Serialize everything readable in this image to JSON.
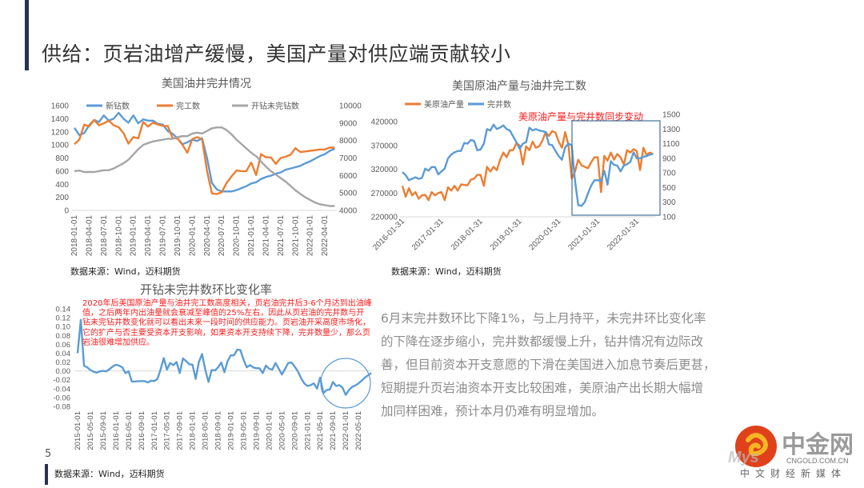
{
  "page": {
    "title": "供给：页岩油增产缓慢，美国产量对供应端贡献较小",
    "page_number": "5",
    "body_text": [
      "6月末完井数环比下降1%，与上月持平，未完井环比变化率",
      "的下降在逐步缩小，完井数都缓慢上升，钻井情况有边际改",
      "善，但目前资本开支意愿的下滑在美国进入加息节奏后更甚，",
      "短期提升页岩油资本开支比较困难，美原油产出长期大幅增",
      "加同样困难，预计本月仍难有明显增加。"
    ],
    "sources": [
      "数据来源：Wind，迈科期货",
      "数据来源：Wind，迈科期货",
      "数据来源：Wind，迈科期货"
    ],
    "logo": {
      "text": "中金网",
      "domain": "CNGOLD.COM.CN",
      "tagline": "中文财经新媒体",
      "watermark": "Mysteel 迈科期货"
    },
    "colors": {
      "blue": "#5b9bd5",
      "orange": "#ed7d31",
      "gray": "#a5a5a5",
      "red": "#ff1a1a",
      "box": "#41719c"
    }
  },
  "chart_data": [
    {
      "type": "line",
      "title": "美国油井完井情况",
      "x_start": "2018-01",
      "x_step": "month",
      "x_tick_labels": [
        "2018-01-01",
        "2018-04-01",
        "2018-07-01",
        "2018-10-01",
        "2019-01-01",
        "2019-04-01",
        "2019-07-01",
        "2019-10-01",
        "2020-01-01",
        "2020-04-01",
        "2020-07-01",
        "2020-10-01",
        "2021-01-01",
        "2021-04-01",
        "2021-07-01",
        "2021-10-01",
        "2022-01-01",
        "2022-04-01"
      ],
      "y_left": {
        "min": 0,
        "max": 1600,
        "step": 200
      },
      "y_right": {
        "min": 4000,
        "max": 10000,
        "step": 1000
      },
      "legend_position": "top",
      "series": [
        {
          "name": "新钻数",
          "axis": "left",
          "color": "#5b9bd5",
          "values": [
            1260,
            1150,
            1180,
            1300,
            1380,
            1350,
            1450,
            1370,
            1400,
            1490,
            1400,
            1340,
            1450,
            1330,
            1390,
            1370,
            1370,
            1320,
            1310,
            1210,
            1170,
            1100,
            1010,
            1040,
            1080,
            1060,
            1100,
            800,
            420,
            320,
            290,
            290,
            290,
            310,
            340,
            370,
            410,
            430,
            480,
            510,
            530,
            560,
            580,
            620,
            640,
            660,
            680,
            720,
            750,
            790,
            830,
            860,
            910,
            940
          ]
        },
        {
          "name": "完工数",
          "axis": "left",
          "color": "#ed7d31",
          "values": [
            1010,
            1080,
            1310,
            1280,
            1380,
            1300,
            1330,
            1370,
            1300,
            1270,
            1180,
            1020,
            1120,
            1100,
            1350,
            1280,
            1340,
            1310,
            1290,
            1290,
            1100,
            1100,
            1000,
            880,
            1090,
            1120,
            1090,
            600,
            260,
            250,
            280,
            420,
            520,
            610,
            600,
            600,
            730,
            540,
            860,
            810,
            810,
            710,
            800,
            820,
            850,
            950,
            890,
            900,
            910,
            920,
            930,
            930,
            960,
            960
          ]
        },
        {
          "name": "开钻未完钻数",
          "axis": "right",
          "color": "#a5a5a5",
          "values": [
            6250,
            6280,
            6200,
            6200,
            6200,
            6250,
            6300,
            6300,
            6400,
            6550,
            6700,
            6900,
            7200,
            7500,
            7750,
            7850,
            7950,
            8000,
            8050,
            8100,
            8100,
            8200,
            8250,
            8250,
            8400,
            8450,
            8400,
            8550,
            8700,
            8750,
            8750,
            8600,
            8350,
            8050,
            7800,
            7550,
            7300,
            7100,
            6800,
            6500,
            6250,
            6050,
            5850,
            5650,
            5400,
            5150,
            4950,
            4750,
            4600,
            4450,
            4350,
            4300,
            4250,
            4250
          ]
        }
      ]
    },
    {
      "type": "line",
      "title": "美国原油产量与油井完工数",
      "annotation": "美原油产量与完井数同步变动",
      "x_start": "2016-01",
      "x_step": "month",
      "x_tick_labels": [
        "2016-01-31",
        "2017-01-31",
        "2018-01-31",
        "2019-01-31",
        "2020-01-31",
        "2021-01-31",
        "2022-01-31"
      ],
      "y_left": {
        "min": 220000,
        "max": 420000,
        "step": 50000
      },
      "y_right": {
        "min": 100,
        "max": 1500,
        "step": 200
      },
      "legend_position": "top-left",
      "series": [
        {
          "name": "美原油产量",
          "axis": "left",
          "color": "#ed7d31",
          "values": [
            285000,
            262000,
            280000,
            265000,
            272000,
            258000,
            265000,
            266000,
            255000,
            272000,
            265000,
            270000,
            272000,
            255000,
            282000,
            275000,
            285000,
            275000,
            288000,
            287000,
            286000,
            298000,
            300000,
            308000,
            308000,
            285000,
            325000,
            315000,
            325000,
            318000,
            340000,
            355000,
            345000,
            360000,
            360000,
            375000,
            370000,
            330000,
            368000,
            360000,
            378000,
            365000,
            368000,
            380000,
            398000,
            390000,
            400000,
            397000,
            378000,
            365000,
            398000,
            370000,
            300000,
            315000,
            340000,
            328000,
            325000,
            322000,
            335000,
            345000,
            345000,
            272000,
            348000,
            338000,
            355000,
            340000,
            352000,
            345000,
            330000,
            360000,
            355000,
            362000,
            358000,
            318000,
            365000,
            350000,
            355000,
            352000
          ]
        },
        {
          "name": "完井数",
          "axis": "right",
          "color": "#5b9bd5",
          "values": [
            710,
            670,
            600,
            620,
            640,
            620,
            630,
            760,
            730,
            780,
            780,
            680,
            720,
            760,
            900,
            950,
            980,
            1000,
            1000,
            1110,
            1100,
            1150,
            1140,
            1010,
            1020,
            1100,
            1300,
            1280,
            1360,
            1300,
            1320,
            1350,
            1300,
            1280,
            1200,
            1120,
            1030,
            1100,
            1120,
            1320,
            1280,
            1300,
            1280,
            1270,
            1260,
            1090,
            1080,
            1000,
            930,
            880,
            1050,
            1100,
            1080,
            600,
            260,
            250,
            300,
            420,
            530,
            600,
            600,
            590,
            730,
            540,
            860,
            810,
            800,
            720,
            800,
            820,
            850,
            980,
            900,
            900,
            920,
            930,
            950,
            960
          ]
        }
      ]
    },
    {
      "type": "line",
      "title": "开钻未完井数环比变化率",
      "annotation": "2020年后美国原油产量与油井完工数高度相关，页岩油完井后3-6个月达到出油峰值，之后两年内出油量就会衰减至峰值的25%左右，因此从页岩油的完井数与开钻未完钻井数变化就可以看出未来一段时间的供应能力。页岩油开采高度市场化，它的扩产与否主要受资本开支影响，如果资本开支持续下降，完井数量少，那么页岩油很难增加供应。",
      "x_start": "2015-01",
      "x_step": "month",
      "x_tick_labels": [
        "2015-01-01",
        "2015-05-01",
        "2015-09-01",
        "2016-01-01",
        "2016-05-01",
        "2016-09-01",
        "2017-01-01",
        "2017-05-01",
        "2017-09-01",
        "2018-01-01",
        "2018-05-01",
        "2018-09-01",
        "2019-01-01",
        "2019-05-01",
        "2019-09-01",
        "2020-01-01",
        "2020-05-01",
        "2020-09-01",
        "2021-01-01",
        "2021-05-01",
        "2021-09-01",
        "2022-01-01",
        "2022-05-01"
      ],
      "y_left": {
        "min": -0.08,
        "max": 0.14,
        "step": 0.02
      },
      "series": [
        {
          "name": "开钻未完井数环比变化率",
          "axis": "left",
          "color": "#5b9bd5",
          "values": [
            0.04,
            0.115,
            0.012,
            0.008,
            0.002,
            -0.002,
            -0.004,
            -0.001,
            0.0,
            -0.001,
            0.004,
            0.01,
            0.014,
            0.012,
            0.008,
            -0.005,
            -0.001,
            -0.024,
            -0.024,
            -0.023,
            -0.023,
            -0.023,
            -0.026,
            -0.022,
            -0.023,
            -0.018,
            0.003,
            0.029,
            0.003,
            0.018,
            0.013,
            0.02,
            -0.005,
            0.028,
            0.022,
            0.015,
            0.014,
            -0.018,
            0.02,
            0.038,
            0.003,
            -0.025,
            0.002,
            0.001,
            0.008,
            0.019,
            -0.003,
            0.022,
            0.035,
            0.035,
            0.048,
            0.047,
            0.025,
            0.008,
            0.013,
            0.008,
            0.006,
            0.006,
            -0.005,
            0.012,
            0.005,
            0.003,
            0.018,
            0.005,
            -0.008,
            0.005,
            0.018,
            0.019,
            0.01,
            -0.001,
            -0.016,
            -0.028,
            -0.034,
            -0.032,
            -0.028,
            -0.04,
            -0.015,
            -0.05,
            -0.043,
            -0.042,
            -0.025,
            -0.034,
            -0.032,
            -0.038,
            -0.054,
            -0.043,
            -0.036,
            -0.033,
            -0.028,
            -0.022,
            -0.015,
            -0.01,
            -0.005
          ]
        }
      ]
    }
  ]
}
